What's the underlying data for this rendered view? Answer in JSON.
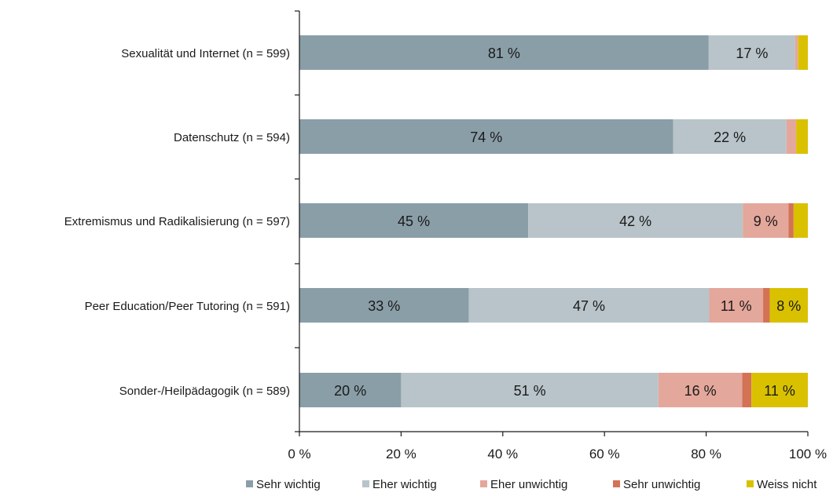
{
  "chart_data": {
    "type": "bar",
    "orientation": "horizontal",
    "stacked": true,
    "categories": [
      "Sexualität und Internet (n = 599)",
      "Datenschutz (n = 594)",
      "Extremismus und Radikalisierung (n = 597)",
      "Peer Education/Peer Tutoring (n = 591)",
      "Sonder-/Heilpädagogik (n = 589)"
    ],
    "series": [
      {
        "name": "Sehr wichtig",
        "color": "#8a9ea8",
        "values": [
          80.5,
          73.5,
          45,
          33.3,
          20
        ],
        "labels": [
          "81 %",
          "74 %",
          "45 %",
          "33 %",
          "20 %"
        ]
      },
      {
        "name": "Eher wichtig",
        "color": "#b8c4c9",
        "values": [
          17,
          22.3,
          42.2,
          47.3,
          50.6
        ],
        "labels": [
          "17 %",
          "22 %",
          "42 %",
          "47 %",
          "51 %"
        ]
      },
      {
        "name": "Eher unwichtig",
        "color": "#e4a79b",
        "values": [
          0.6,
          1.9,
          9,
          10.6,
          16.5
        ],
        "labels": [
          "",
          "",
          "9 %",
          "11 %",
          "16 %"
        ]
      },
      {
        "name": "Sehr unwichtig",
        "color": "#d47256",
        "values": [
          0,
          0,
          1,
          1.3,
          1.8
        ],
        "labels": [
          "",
          "",
          "",
          "",
          ""
        ]
      },
      {
        "name": "Weiss nicht",
        "color": "#d9c100",
        "values": [
          1.9,
          2.3,
          2.8,
          7.5,
          11.1
        ],
        "labels": [
          "",
          "",
          "",
          "8 %",
          "11 %"
        ]
      }
    ],
    "xlim": [
      0,
      100
    ],
    "xticks": [
      "0 %",
      "20 %",
      "40 %",
      "60 %",
      "80 %",
      "100 %"
    ],
    "grid": false,
    "legend_position": "bottom"
  }
}
